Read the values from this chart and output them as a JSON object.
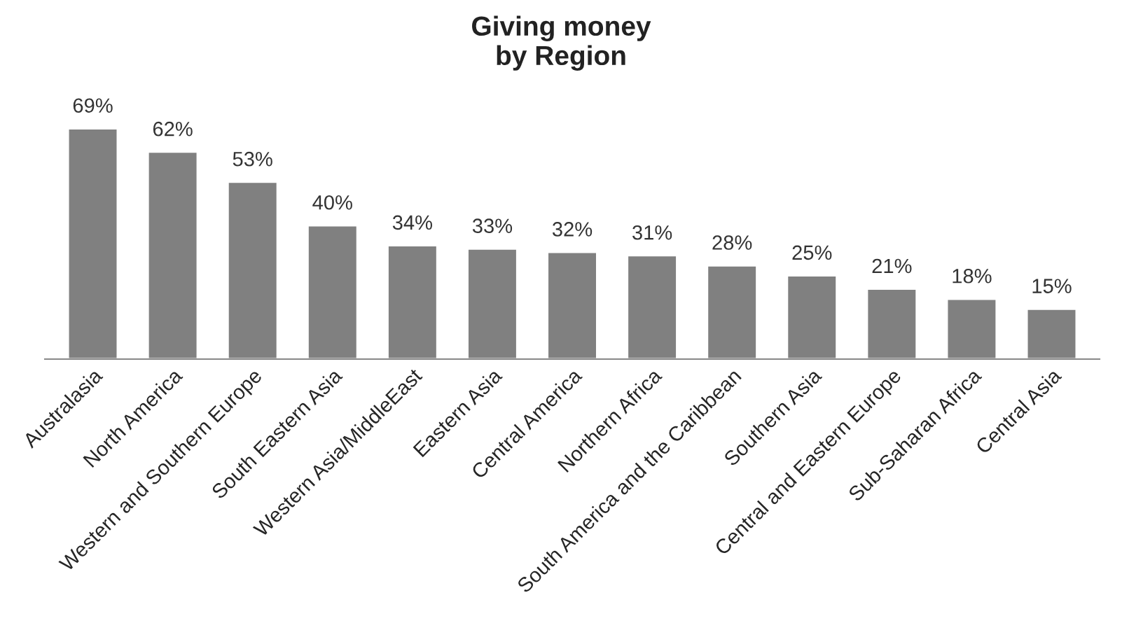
{
  "chart_data": {
    "type": "bar",
    "title": "Giving money\nby Region",
    "categories": [
      "Australasia",
      "North America",
      "Western and Southern Europe",
      "South Eastern Asia",
      "Western Asia/MiddleEast",
      "Eastern Asia",
      "Central America",
      "Northern Africa",
      "South America and the Caribbean",
      "Southern Asia",
      "Central and Eastern Europe",
      "Sub-Saharan Africa",
      "Central Asia"
    ],
    "values": [
      69,
      62,
      53,
      40,
      34,
      33,
      32,
      31,
      28,
      25,
      21,
      18,
      15
    ],
    "value_labels": [
      "69%",
      "62%",
      "53%",
      "40%",
      "34%",
      "33%",
      "32%",
      "31%",
      "28%",
      "25%",
      "21%",
      "18%",
      "15%"
    ],
    "color": "#808080",
    "grid": false,
    "legend": false
  }
}
